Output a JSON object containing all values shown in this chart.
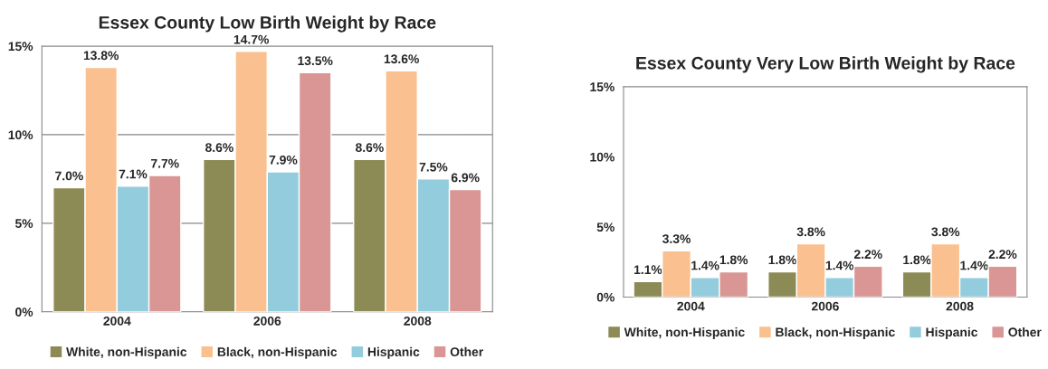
{
  "chart_data": [
    {
      "type": "bar",
      "title": "Essex County Low Birth Weight by Race",
      "categories": [
        "2004",
        "2006",
        "2008"
      ],
      "ylim": [
        0,
        15
      ],
      "yticks": [
        {
          "value": 0,
          "label": "0%"
        },
        {
          "value": 5,
          "label": "5%"
        },
        {
          "value": 10,
          "label": "10%"
        },
        {
          "value": 15,
          "label": "15%"
        }
      ],
      "grid": "y",
      "legend": "bottom",
      "series": [
        {
          "name": "White, non-Hispanic",
          "color": "#8c8a55",
          "values": [
            7.0,
            8.6,
            8.6
          ],
          "value_labels": [
            "7.0%",
            "8.6%",
            "8.6%"
          ]
        },
        {
          "name": "Black, non-Hispanic",
          "color": "#fac08f",
          "values": [
            13.8,
            14.7,
            13.6
          ],
          "value_labels": [
            "13.8%",
            "14.7%",
            "13.6%"
          ]
        },
        {
          "name": "Hispanic",
          "color": "#93cddd",
          "values": [
            7.1,
            7.9,
            7.5
          ],
          "value_labels": [
            "7.1%",
            "7.9%",
            "7.5%"
          ]
        },
        {
          "name": "Other",
          "color": "#d99694",
          "values": [
            7.7,
            13.5,
            6.9
          ],
          "value_labels": [
            "7.7%",
            "13.5%",
            "6.9%"
          ]
        }
      ]
    },
    {
      "type": "bar",
      "title": "Essex County Very Low Birth Weight by Race",
      "categories": [
        "2004",
        "2006",
        "2008"
      ],
      "ylim": [
        0,
        15
      ],
      "yticks": [
        {
          "value": 0,
          "label": "0%"
        },
        {
          "value": 5,
          "label": "5%"
        },
        {
          "value": 10,
          "label": "10%"
        },
        {
          "value": 15,
          "label": "15%"
        }
      ],
      "legend": "bottom",
      "series": [
        {
          "name": "White, non-Hispanic",
          "color": "#8c8a55",
          "values": [
            1.1,
            1.8,
            1.8
          ],
          "value_labels": [
            "1.1%",
            "1.8%",
            "1.8%"
          ]
        },
        {
          "name": "Black, non-Hispanic",
          "color": "#fac08f",
          "values": [
            3.3,
            3.8,
            3.8
          ],
          "value_labels": [
            "3.3%",
            "3.8%",
            "3.8%"
          ]
        },
        {
          "name": "Hispanic",
          "color": "#93cddd",
          "values": [
            1.4,
            1.4,
            1.4
          ],
          "value_labels": [
            "1.4%",
            "1.4%",
            "1.4%"
          ]
        },
        {
          "name": "Other",
          "color": "#d99694",
          "values": [
            1.8,
            2.2,
            2.2
          ],
          "value_labels": [
            "1.8%",
            "2.2%",
            "2.2%"
          ]
        }
      ]
    }
  ]
}
